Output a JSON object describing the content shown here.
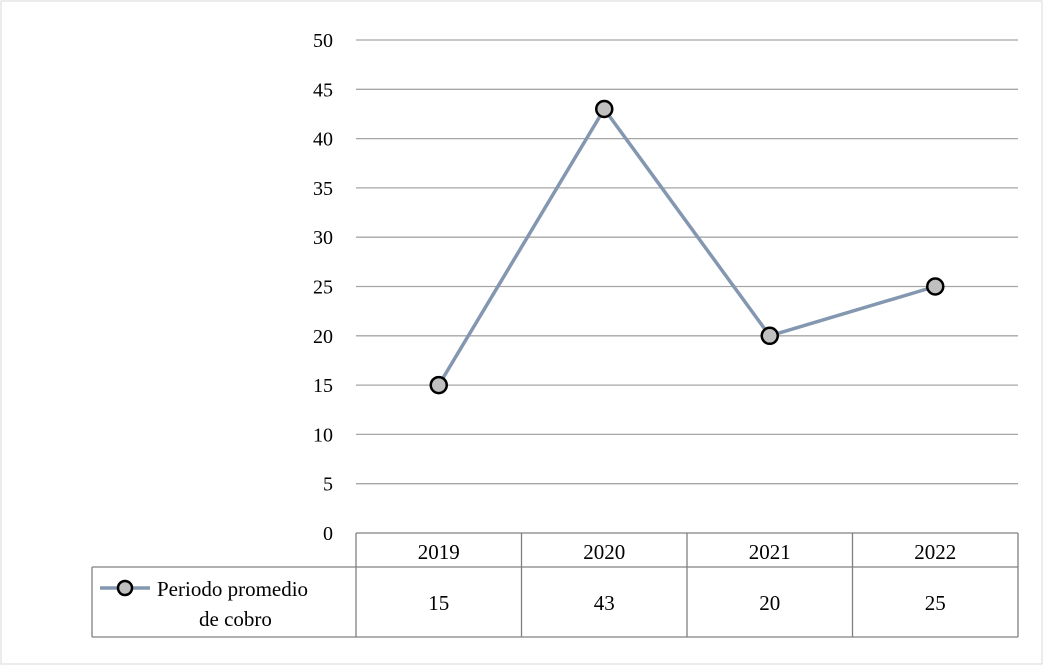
{
  "chart_data": {
    "type": "line",
    "categories": [
      "2019",
      "2020",
      "2021",
      "2022"
    ],
    "series": [
      {
        "name": "Periodo promedio de cobro",
        "name_lines": [
          "Periodo promedio",
          "de cobro"
        ],
        "values": [
          15,
          43,
          20,
          25
        ],
        "value_labels": [
          "15",
          "43",
          "20",
          "25"
        ],
        "color": "#8497b0",
        "marker_fill": "#c0c0c0",
        "marker_stroke": "#000000"
      }
    ],
    "y_ticks": [
      "0",
      "5",
      "10",
      "15",
      "20",
      "25",
      "30",
      "35",
      "40",
      "45",
      "50"
    ],
    "ylim": [
      0,
      50
    ],
    "grid": true,
    "legend": "data-table",
    "title": "",
    "xlabel": "",
    "ylabel": ""
  }
}
